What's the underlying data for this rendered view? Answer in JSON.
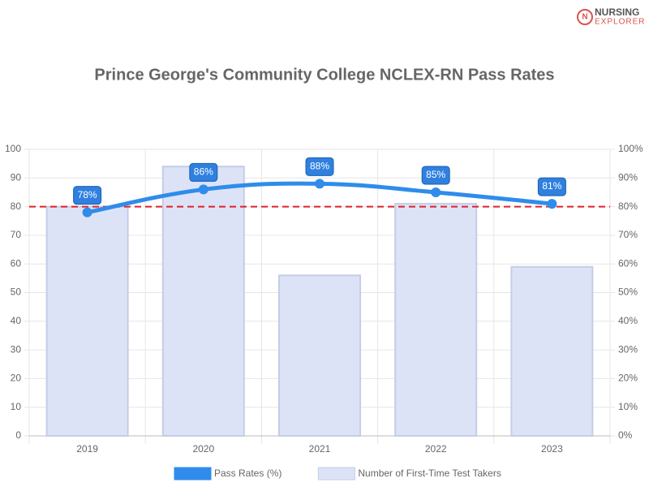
{
  "logo": {
    "line1": "NURSING",
    "line2": "EXPLORER"
  },
  "chart_data": {
    "type": "bar-line",
    "title": "Prince George's Community College NCLEX-RN Pass Rates",
    "categories": [
      "2019",
      "2020",
      "2021",
      "2022",
      "2023"
    ],
    "series": [
      {
        "name": "Pass Rates (%)",
        "type": "line",
        "axis": "y2",
        "color": "#2f8ceb",
        "values": [
          78,
          86,
          88,
          85,
          81
        ],
        "value_labels": [
          "78%",
          "86%",
          "88%",
          "85%",
          "81%"
        ]
      },
      {
        "name": "Number of First-Time Test Takers",
        "type": "bar",
        "axis": "y",
        "color": "#dde3f7",
        "values": [
          80,
          94,
          56,
          81,
          59
        ]
      }
    ],
    "ylim": [
      0,
      100
    ],
    "yticks": [
      0,
      10,
      20,
      30,
      40,
      50,
      60,
      70,
      80,
      90,
      100
    ],
    "y2lim": [
      0,
      100
    ],
    "y2ticks": [
      {
        "value": 0,
        "label": "0%"
      },
      {
        "value": 10,
        "label": "10%"
      },
      {
        "value": 20,
        "label": "20%"
      },
      {
        "value": 30,
        "label": "30%"
      },
      {
        "value": 40,
        "label": "40%"
      },
      {
        "value": 50,
        "label": "50%"
      },
      {
        "value": 60,
        "label": "60%"
      },
      {
        "value": 70,
        "label": "70%"
      },
      {
        "value": 80,
        "label": "80%"
      },
      {
        "value": 90,
        "label": "90%"
      },
      {
        "value": 100,
        "label": "100%"
      }
    ],
    "reference_line": {
      "value": 80,
      "axis": "y2",
      "color": "#e0222a"
    },
    "grid": true,
    "legend": "bottom"
  }
}
